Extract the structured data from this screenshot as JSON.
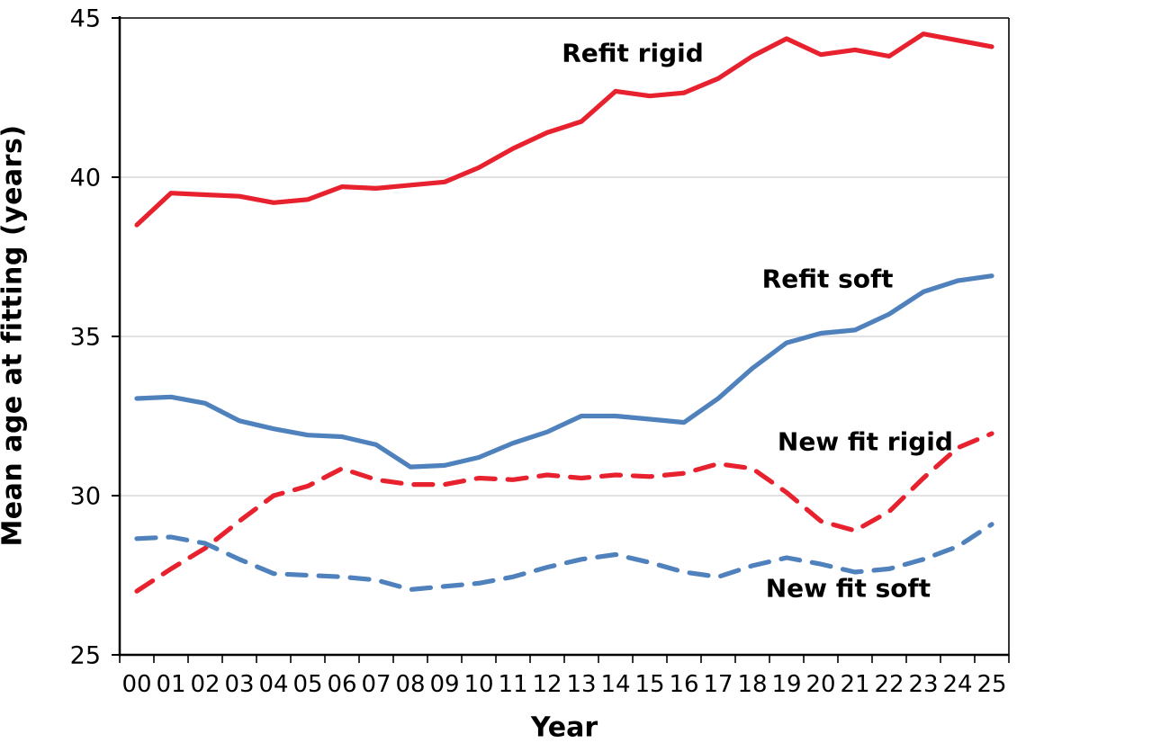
{
  "figure": {
    "background": "#ffffff",
    "axis_color": "#000000",
    "grid_color": "#d9d9d9"
  },
  "chart_data": {
    "type": "line",
    "title": "",
    "xlabel": "Year",
    "ylabel": "Mean age at fitting (years)",
    "x_categories": [
      "00",
      "01",
      "02",
      "03",
      "04",
      "05",
      "06",
      "07",
      "08",
      "09",
      "10",
      "11",
      "12",
      "13",
      "14",
      "15",
      "16",
      "17",
      "18",
      "19",
      "20",
      "21",
      "22",
      "23",
      "24",
      "25"
    ],
    "ylim": [
      25,
      45
    ],
    "y_ticks": [
      25,
      30,
      35,
      40,
      45
    ],
    "grid": "horizontal",
    "legend_position": "inline-annotations",
    "series": [
      {
        "name": "Refit rigid",
        "style": "solid",
        "color": "#e8212e",
        "values": [
          38.5,
          39.5,
          39.45,
          39.4,
          39.2,
          39.3,
          39.7,
          39.65,
          39.75,
          39.85,
          40.3,
          40.9,
          41.4,
          41.75,
          42.7,
          42.55,
          42.65,
          43.1,
          43.8,
          44.35,
          43.85,
          44.0,
          43.8,
          44.5,
          44.3,
          44.1
        ]
      },
      {
        "name": "Refit soft",
        "style": "solid",
        "color": "#4f81bd",
        "values": [
          33.05,
          33.1,
          32.9,
          32.35,
          32.1,
          31.9,
          31.85,
          31.6,
          30.9,
          30.95,
          31.2,
          31.65,
          32.0,
          32.5,
          32.5,
          32.4,
          32.3,
          33.05,
          34.0,
          34.8,
          35.1,
          35.2,
          35.7,
          36.4,
          36.75,
          36.9
        ]
      },
      {
        "name": "New fit rigid",
        "style": "dashed",
        "color": "#e8212e",
        "values": [
          27.0,
          27.7,
          28.35,
          29.2,
          30.0,
          30.3,
          30.85,
          30.5,
          30.35,
          30.35,
          30.55,
          30.5,
          30.65,
          30.55,
          30.65,
          30.6,
          30.7,
          31.0,
          30.85,
          30.1,
          29.2,
          28.9,
          29.5,
          30.55,
          31.5,
          31.95
        ]
      },
      {
        "name": "New fit soft",
        "style": "dashed",
        "color": "#4f81bd",
        "values": [
          28.65,
          28.7,
          28.5,
          28.0,
          27.55,
          27.5,
          27.45,
          27.35,
          27.05,
          27.15,
          27.25,
          27.45,
          27.75,
          28.0,
          28.15,
          27.9,
          27.6,
          27.45,
          27.8,
          28.05,
          27.85,
          27.6,
          27.7,
          28.0,
          28.4,
          29.1
        ]
      }
    ],
    "annotations": [
      {
        "text": "Refit rigid",
        "x_year": 15.0,
        "y_value": 43.9
      },
      {
        "text": "Refit soft",
        "x_year": 20.7,
        "y_value": 36.8
      },
      {
        "text": "New fit rigid",
        "x_year": 21.8,
        "y_value": 31.7
      },
      {
        "text": "New fit soft",
        "x_year": 21.3,
        "y_value": 27.1
      }
    ]
  }
}
